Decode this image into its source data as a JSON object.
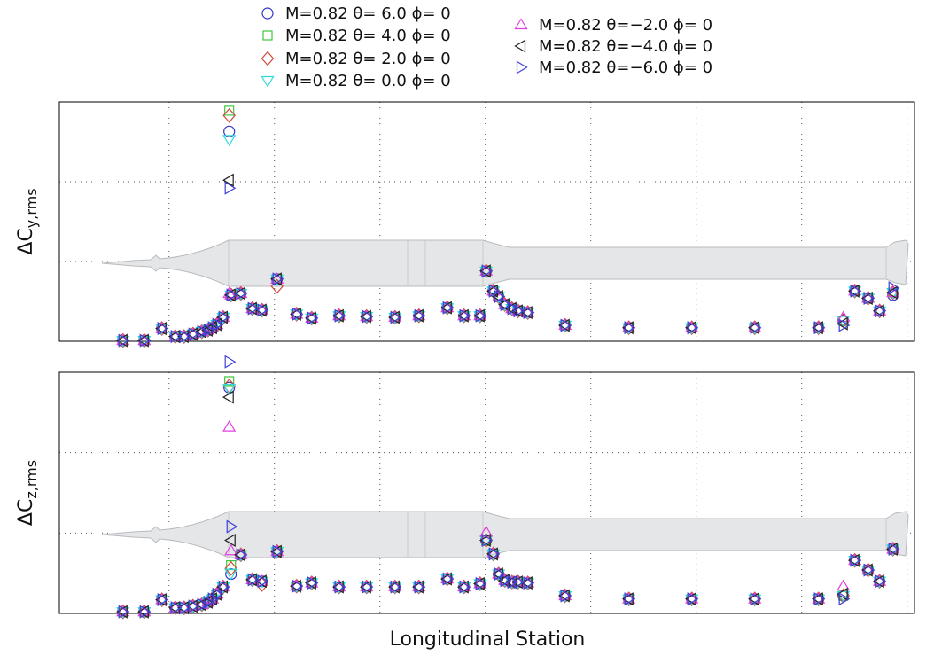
{
  "chart_data": [
    {
      "type": "scatter",
      "ylabel": "ΔC",
      "ylabel_subscript": "y,rms",
      "xlim": [
        -0.04,
        8.07
      ],
      "ylim": [
        0,
        3
      ],
      "xticks": [
        1,
        2,
        3,
        4,
        5,
        6,
        7,
        8
      ],
      "yticks": [
        1,
        2
      ],
      "grid": true,
      "x": [
        0.563,
        0.765,
        0.933,
        1.059,
        1.143,
        1.227,
        1.311,
        1.37,
        1.412,
        1.454,
        1.513,
        1.571,
        1.588,
        1.681,
        1.79,
        1.882,
        2.025,
        2.21,
        2.353,
        2.613,
        2.874,
        3.143,
        3.37,
        3.639,
        3.798,
        3.95,
        4.008,
        4.076,
        4.126,
        4.185,
        4.252,
        4.311,
        4.403,
        4.756,
        5.361,
        5.958,
        6.555,
        7.16,
        7.395,
        7.504,
        7.63,
        7.739,
        7.866
      ],
      "series": [
        {
          "name": "M=0.82 θ= 6.0 ϕ= 0",
          "color": "#3434c8",
          "marker": "o",
          "values": [
            0.01,
            0.01,
            0.16,
            0.06,
            0.06,
            0.09,
            0.12,
            0.14,
            0.17,
            0.21,
            0.3,
            2.63,
            0.58,
            0.6,
            0.41,
            0.39,
            0.78,
            0.34,
            0.29,
            0.32,
            0.31,
            0.3,
            0.32,
            0.42,
            0.32,
            0.32,
            0.88,
            0.63,
            0.56,
            0.46,
            0.41,
            0.38,
            0.36,
            0.2,
            0.17,
            0.17,
            0.17,
            0.17,
            0.26,
            0.63,
            0.54,
            0.38,
            0.58
          ]
        },
        {
          "name": "M=0.82 θ= 4.0 ϕ= 0",
          "color": "#3cc83c",
          "marker": "s",
          "values": [
            0.01,
            0.01,
            0.16,
            0.06,
            0.06,
            0.09,
            0.12,
            0.14,
            0.17,
            0.21,
            0.3,
            2.89,
            0.58,
            0.6,
            0.41,
            0.39,
            0.78,
            0.34,
            0.29,
            0.32,
            0.31,
            0.3,
            0.32,
            0.42,
            0.32,
            0.32,
            0.88,
            0.63,
            0.56,
            0.46,
            0.41,
            0.38,
            0.36,
            0.2,
            0.17,
            0.17,
            0.17,
            0.17,
            0.26,
            0.63,
            0.54,
            0.38,
            0.61
          ]
        },
        {
          "name": "M=0.82 θ= 2.0 ϕ= 0",
          "color": "#d04a3a",
          "marker": "D",
          "values": [
            0.01,
            0.01,
            0.16,
            0.06,
            0.06,
            0.09,
            0.12,
            0.14,
            0.17,
            0.21,
            0.3,
            2.83,
            0.58,
            0.6,
            0.41,
            0.39,
            0.69,
            0.34,
            0.29,
            0.32,
            0.31,
            0.3,
            0.32,
            0.42,
            0.32,
            0.32,
            0.88,
            0.63,
            0.56,
            0.46,
            0.41,
            0.38,
            0.36,
            0.2,
            0.17,
            0.17,
            0.17,
            0.17,
            0.26,
            0.63,
            0.54,
            0.38,
            0.61
          ]
        },
        {
          "name": "M=0.82 θ= 0.0 ϕ= 0",
          "color": "#30d8e0",
          "marker": "v",
          "values": [
            0.01,
            0.01,
            0.16,
            0.06,
            0.06,
            0.09,
            0.12,
            0.14,
            0.17,
            0.21,
            0.3,
            2.53,
            0.58,
            0.6,
            0.41,
            0.39,
            0.78,
            0.34,
            0.29,
            0.32,
            0.31,
            0.3,
            0.32,
            0.42,
            0.32,
            0.32,
            0.88,
            0.63,
            0.56,
            0.46,
            0.41,
            0.38,
            0.36,
            0.2,
            0.17,
            0.17,
            0.17,
            0.17,
            0.26,
            0.63,
            0.54,
            0.38,
            0.61
          ]
        },
        {
          "name": "M=0.82 θ=−2.0 ϕ= 0",
          "color": "#e040e0",
          "marker": "^",
          "values": [
            0.01,
            0.01,
            0.16,
            0.06,
            0.06,
            0.09,
            0.12,
            0.14,
            0.17,
            0.21,
            0.3,
            0.6,
            0.58,
            0.6,
            0.41,
            0.39,
            0.78,
            0.34,
            0.29,
            0.32,
            0.31,
            0.3,
            0.32,
            0.42,
            0.32,
            0.32,
            0.88,
            0.63,
            0.56,
            0.46,
            0.41,
            0.38,
            0.36,
            0.2,
            0.17,
            0.17,
            0.17,
            0.17,
            0.3,
            0.63,
            0.54,
            0.38,
            0.61
          ]
        },
        {
          "name": "M=0.82 θ=−4.0 ϕ= 0",
          "color": "#222222",
          "marker": "<",
          "values": [
            0.01,
            0.01,
            0.16,
            0.06,
            0.06,
            0.09,
            0.12,
            0.14,
            0.17,
            0.21,
            0.3,
            2.02,
            0.58,
            0.6,
            0.41,
            0.39,
            0.78,
            0.34,
            0.29,
            0.32,
            0.31,
            0.3,
            0.32,
            0.42,
            0.32,
            0.32,
            0.88,
            0.63,
            0.56,
            0.46,
            0.41,
            0.38,
            0.36,
            0.2,
            0.17,
            0.17,
            0.17,
            0.17,
            0.22,
            0.63,
            0.54,
            0.38,
            0.61
          ]
        },
        {
          "name": "M=0.82 θ=−6.0 ϕ= 0",
          "color": "#4040d8",
          "marker": ">",
          "values": [
            0.01,
            0.01,
            0.16,
            0.06,
            0.06,
            0.09,
            0.12,
            0.14,
            0.17,
            0.21,
            0.3,
            1.92,
            0.58,
            0.6,
            0.41,
            0.39,
            0.78,
            0.34,
            0.29,
            0.32,
            0.31,
            0.3,
            0.32,
            0.42,
            0.32,
            0.32,
            0.88,
            0.63,
            0.56,
            0.46,
            0.41,
            0.38,
            0.36,
            0.2,
            0.17,
            0.17,
            0.17,
            0.17,
            0.2,
            0.63,
            0.54,
            0.38,
            0.67
          ]
        }
      ]
    },
    {
      "type": "scatter",
      "ylabel": "ΔC",
      "ylabel_subscript": "z,rms",
      "xlabel": "Longitudinal Station",
      "xlim": [
        -0.04,
        8.07
      ],
      "ylim": [
        0,
        3
      ],
      "xticks": [
        1,
        2,
        3,
        4,
        5,
        6,
        7,
        8
      ],
      "yticks": [
        1,
        2
      ],
      "grid": true,
      "x": [
        0.563,
        0.765,
        0.933,
        1.059,
        1.143,
        1.227,
        1.311,
        1.37,
        1.412,
        1.454,
        1.513,
        1.571,
        1.588,
        1.681,
        1.79,
        1.882,
        2.025,
        2.21,
        2.353,
        2.613,
        2.874,
        3.143,
        3.37,
        3.639,
        3.798,
        3.95,
        4.008,
        4.076,
        4.126,
        4.185,
        4.252,
        4.311,
        4.403,
        4.756,
        5.361,
        5.958,
        6.555,
        7.16,
        7.395,
        7.504,
        7.63,
        7.739,
        7.866
      ],
      "series": [
        {
          "color": "#3434c8",
          "marker": "o",
          "values": [
            0.02,
            0.02,
            0.17,
            0.07,
            0.07,
            0.09,
            0.11,
            0.14,
            0.18,
            0.24,
            0.33,
            2.81,
            0.49,
            0.73,
            0.42,
            0.4,
            0.77,
            0.34,
            0.38,
            0.33,
            0.33,
            0.33,
            0.33,
            0.43,
            0.33,
            0.37,
            0.91,
            0.74,
            0.49,
            0.41,
            0.39,
            0.39,
            0.38,
            0.22,
            0.18,
            0.18,
            0.18,
            0.18,
            0.22,
            0.66,
            0.54,
            0.4,
            0.8
          ]
        },
        {
          "color": "#3cc83c",
          "marker": "s",
          "values": [
            0.02,
            0.02,
            0.17,
            0.07,
            0.07,
            0.09,
            0.11,
            0.14,
            0.18,
            0.24,
            0.33,
            2.89,
            0.6,
            0.73,
            0.42,
            0.4,
            0.77,
            0.34,
            0.38,
            0.33,
            0.33,
            0.33,
            0.33,
            0.43,
            0.33,
            0.37,
            0.91,
            0.74,
            0.49,
            0.41,
            0.39,
            0.39,
            0.38,
            0.22,
            0.18,
            0.18,
            0.18,
            0.18,
            0.22,
            0.66,
            0.54,
            0.4,
            0.8
          ]
        },
        {
          "color": "#d04a3a",
          "marker": "D",
          "values": [
            0.02,
            0.02,
            0.17,
            0.07,
            0.07,
            0.09,
            0.11,
            0.14,
            0.18,
            0.24,
            0.33,
            2.83,
            0.56,
            0.73,
            0.42,
            0.36,
            0.77,
            0.34,
            0.38,
            0.33,
            0.33,
            0.33,
            0.33,
            0.43,
            0.33,
            0.37,
            0.91,
            0.74,
            0.49,
            0.41,
            0.39,
            0.39,
            0.38,
            0.22,
            0.18,
            0.18,
            0.18,
            0.18,
            0.22,
            0.66,
            0.54,
            0.4,
            0.8
          ]
        },
        {
          "color": "#30d8e0",
          "marker": "v",
          "values": [
            0.02,
            0.02,
            0.17,
            0.07,
            0.07,
            0.09,
            0.11,
            0.14,
            0.18,
            0.24,
            0.33,
            2.8,
            0.5,
            0.73,
            0.42,
            0.4,
            0.77,
            0.34,
            0.38,
            0.33,
            0.33,
            0.33,
            0.33,
            0.43,
            0.33,
            0.37,
            0.91,
            0.74,
            0.49,
            0.41,
            0.39,
            0.39,
            0.38,
            0.22,
            0.18,
            0.18,
            0.18,
            0.18,
            0.22,
            0.66,
            0.54,
            0.4,
            0.8
          ]
        },
        {
          "color": "#e040e0",
          "marker": "^",
          "values": [
            0.02,
            0.02,
            0.17,
            0.07,
            0.07,
            0.09,
            0.11,
            0.14,
            0.18,
            0.24,
            0.33,
            2.32,
            0.78,
            0.73,
            0.42,
            0.4,
            0.77,
            0.34,
            0.38,
            0.33,
            0.33,
            0.33,
            0.33,
            0.43,
            0.33,
            0.37,
            1.01,
            0.74,
            0.49,
            0.41,
            0.39,
            0.39,
            0.38,
            0.22,
            0.18,
            0.18,
            0.18,
            0.18,
            0.34,
            0.66,
            0.54,
            0.4,
            0.8
          ]
        },
        {
          "color": "#222222",
          "marker": "<",
          "values": [
            0.02,
            0.02,
            0.17,
            0.07,
            0.07,
            0.09,
            0.11,
            0.14,
            0.18,
            0.24,
            0.33,
            2.69,
            0.91,
            0.73,
            0.42,
            0.4,
            0.77,
            0.34,
            0.38,
            0.33,
            0.33,
            0.33,
            0.33,
            0.43,
            0.33,
            0.37,
            0.91,
            0.74,
            0.49,
            0.41,
            0.39,
            0.39,
            0.38,
            0.22,
            0.18,
            0.18,
            0.18,
            0.18,
            0.24,
            0.66,
            0.54,
            0.4,
            0.8
          ]
        },
        {
          "color": "#4040d8",
          "marker": ">",
          "values": [
            0.02,
            0.02,
            0.17,
            0.07,
            0.07,
            0.09,
            0.11,
            0.14,
            0.18,
            0.24,
            0.33,
            3.13,
            1.08,
            0.73,
            0.42,
            0.4,
            0.77,
            0.34,
            0.38,
            0.33,
            0.33,
            0.33,
            0.33,
            0.43,
            0.33,
            0.37,
            0.91,
            0.74,
            0.49,
            0.41,
            0.39,
            0.39,
            0.38,
            0.22,
            0.18,
            0.18,
            0.18,
            0.18,
            0.18,
            0.66,
            0.54,
            0.4,
            0.8
          ]
        }
      ]
    }
  ]
}
